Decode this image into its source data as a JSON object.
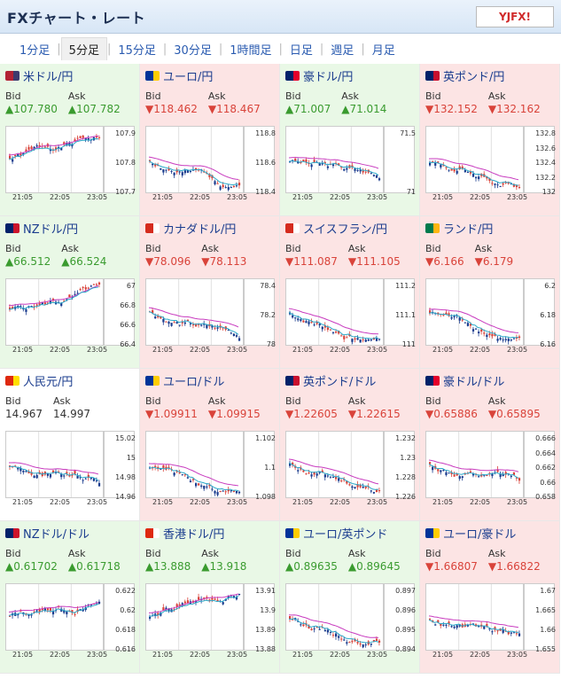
{
  "header": {
    "title": "FXチャート・レート",
    "logo_text": "YJFX!"
  },
  "tabs": [
    "1分足",
    "5分足",
    "15分足",
    "30分足",
    "1時間足",
    "日足",
    "週足",
    "月足"
  ],
  "active_tab": 1,
  "labels": {
    "bid": "Bid",
    "ask": "Ask"
  },
  "colors": {
    "up": "#3a9b2f",
    "down": "#d9433a",
    "candle_up": "#d9433a",
    "candle_down": "#1a3c8e"
  },
  "x_ticks": [
    "21:05",
    "22:05",
    "23:05"
  ],
  "pairs": [
    {
      "name": "米ドル/円",
      "flag": "us",
      "dir": "up",
      "bid": "▲107.780",
      "ask": "▲107.782",
      "yticks": [
        "107.9",
        "107.8",
        "107.7"
      ],
      "seed": 1
    },
    {
      "name": "ユーロ/円",
      "flag": "eu",
      "dir": "down",
      "bid": "▼118.462",
      "ask": "▼118.467",
      "yticks": [
        "118.8",
        "118.6",
        "118.4"
      ],
      "seed": 2
    },
    {
      "name": "豪ドル/円",
      "flag": "au",
      "dir": "up",
      "bid": "▲71.007",
      "ask": "▲71.014",
      "yticks": [
        "71.5",
        "71"
      ],
      "seed": 3
    },
    {
      "name": "英ポンド/円",
      "flag": "gb",
      "dir": "down",
      "bid": "▼132.152",
      "ask": "▼132.162",
      "yticks": [
        "132.8",
        "132.6",
        "132.4",
        "132.2",
        "132"
      ],
      "seed": 4
    },
    {
      "name": "NZドル/円",
      "flag": "nz",
      "dir": "up",
      "bid": "▲66.512",
      "ask": "▲66.524",
      "yticks": [
        "67",
        "66.8",
        "66.6",
        "66.4"
      ],
      "seed": 5
    },
    {
      "name": "カナダドル/円",
      "flag": "ca",
      "dir": "down",
      "bid": "▼78.096",
      "ask": "▼78.113",
      "yticks": [
        "78.4",
        "78.2",
        "78"
      ],
      "seed": 6
    },
    {
      "name": "スイスフラン/円",
      "flag": "ch",
      "dir": "down",
      "bid": "▼111.087",
      "ask": "▼111.105",
      "yticks": [
        "111.2",
        "111.1",
        "111"
      ],
      "seed": 7
    },
    {
      "name": "ランド/円",
      "flag": "za",
      "dir": "down",
      "bid": "▼6.166",
      "ask": "▼6.179",
      "yticks": [
        "6.2",
        "6.18",
        "6.16"
      ],
      "seed": 8
    },
    {
      "name": "人民元/円",
      "flag": "cn",
      "dir": "flat",
      "bid": "14.967",
      "ask": "14.997",
      "yticks": [
        "15.02",
        "15",
        "14.98",
        "14.96"
      ],
      "seed": 9
    },
    {
      "name": "ユーロ/ドル",
      "flag": "eu",
      "dir": "down",
      "bid": "▼1.09911",
      "ask": "▼1.09915",
      "yticks": [
        "1.102",
        "1.1",
        "1.098"
      ],
      "seed": 10
    },
    {
      "name": "英ポンド/ドル",
      "flag": "gb",
      "dir": "down",
      "bid": "▼1.22605",
      "ask": "▼1.22615",
      "yticks": [
        "1.232",
        "1.23",
        "1.228",
        "1.226"
      ],
      "seed": 11
    },
    {
      "name": "豪ドル/ドル",
      "flag": "au",
      "dir": "down",
      "bid": "▼0.65886",
      "ask": "▼0.65895",
      "yticks": [
        "0.666",
        "0.664",
        "0.662",
        "0.66",
        "0.658"
      ],
      "seed": 12
    },
    {
      "name": "NZドル/ドル",
      "flag": "nz",
      "dir": "up",
      "bid": "▲0.61702",
      "ask": "▲0.61718",
      "yticks": [
        "0.622",
        "0.62",
        "0.618",
        "0.616"
      ],
      "seed": 13
    },
    {
      "name": "香港ドル/円",
      "flag": "hk",
      "dir": "up",
      "bid": "▲13.888",
      "ask": "▲13.918",
      "yticks": [
        "13.91",
        "13.9",
        "13.89",
        "13.88"
      ],
      "seed": 14
    },
    {
      "name": "ユーロ/英ポンド",
      "flag": "eu",
      "dir": "up",
      "bid": "▲0.89635",
      "ask": "▲0.89645",
      "yticks": [
        "0.897",
        "0.896",
        "0.895",
        "0.894"
      ],
      "seed": 15
    },
    {
      "name": "ユーロ/豪ドル",
      "flag": "eu",
      "dir": "down",
      "bid": "▼1.66807",
      "ask": "▼1.66822",
      "yticks": [
        "1.67",
        "1.665",
        "1.66",
        "1.655"
      ],
      "seed": 16
    }
  ]
}
